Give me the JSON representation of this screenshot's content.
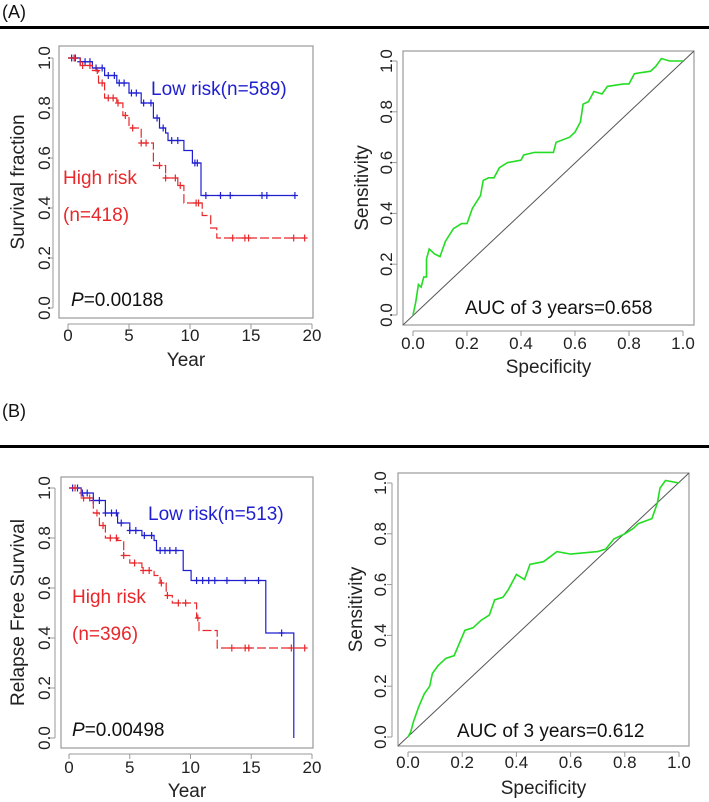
{
  "panels": [
    {
      "label": "(A)"
    },
    {
      "label": "(B)"
    }
  ],
  "colors": {
    "low_risk": "#1f1fd0",
    "high_risk": "#e8282b",
    "roc": "#22dd22",
    "diagonal": "#555555",
    "frame": "#9a9a9a"
  },
  "chart_data": [
    {
      "type": "line",
      "subtype": "kaplan-meier",
      "xlabel": "Year",
      "ylabel": "Survival fraction",
      "xlim": [
        0,
        20
      ],
      "ylim": [
        0,
        1
      ],
      "xticks": [
        "0",
        "5",
        "10",
        "15",
        "20"
      ],
      "yticks": [
        "0.0",
        "0.2",
        "0.4",
        "0.6",
        "0.8",
        "1.0"
      ],
      "annotation": {
        "p_prefix": "P",
        "p_value": "=0.00188"
      },
      "series": [
        {
          "name": "Low risk(n=589)",
          "color": "#1f1fd0",
          "x": [
            0,
            1,
            2,
            3,
            4,
            5,
            6,
            7,
            7.5,
            8,
            8.2,
            9.5,
            10.2,
            10.9,
            18.6
          ],
          "y": [
            1,
            0.985,
            0.96,
            0.93,
            0.9,
            0.86,
            0.82,
            0.76,
            0.72,
            0.7,
            0.67,
            0.63,
            0.58,
            0.45,
            0.45
          ],
          "censored": [
            0.3,
            0.6,
            1,
            1.4,
            1.8,
            2.3,
            2.8,
            3.3,
            3.8,
            4.2,
            4.6,
            5.2,
            5.6,
            6.2,
            6.8,
            7.3,
            7.8,
            8.5,
            9,
            10.4,
            10.6,
            11.3,
            12.5,
            13.3,
            15.9,
            16.3,
            18.6
          ]
        },
        {
          "name_line1": "High risk",
          "name_line2": "(n=418)",
          "color": "#e8282b",
          "x": [
            0,
            1,
            2,
            2.5,
            3,
            4,
            4.5,
            5,
            6,
            7,
            8,
            9,
            9.5,
            10.8,
            11,
            11.7,
            12.2,
            19.4
          ],
          "y": [
            1,
            0.97,
            0.95,
            0.9,
            0.84,
            0.82,
            0.77,
            0.72,
            0.66,
            0.57,
            0.52,
            0.49,
            0.42,
            0.42,
            0.37,
            0.32,
            0.28,
            0.28
          ],
          "censored": [
            0.5,
            1.2,
            1.8,
            2.4,
            2.8,
            3.3,
            3.7,
            4.1,
            4.7,
            5.3,
            6,
            6.4,
            7.5,
            8,
            8.8,
            9.2,
            10.5,
            10.7,
            13.5,
            14.5,
            14.8,
            18.5,
            19.4
          ]
        }
      ]
    },
    {
      "type": "line",
      "subtype": "roc",
      "xlabel": "Specificity",
      "ylabel": "Sensitivity",
      "xlim": [
        0,
        1
      ],
      "ylim": [
        0,
        1
      ],
      "xticks": [
        "0.0",
        "0.2",
        "0.4",
        "0.6",
        "0.8",
        "1.0"
      ],
      "yticks": [
        "0.0",
        "0.2",
        "0.4",
        "0.6",
        "0.8",
        "1.0"
      ],
      "annotation": {
        "auc": "AUC of 3 years=0.658"
      },
      "series": [
        {
          "color": "#22dd22",
          "x": [
            0,
            0.01,
            0.02,
            0.03,
            0.04,
            0.05,
            0.05,
            0.06,
            0.08,
            0.1,
            0.12,
            0.15,
            0.18,
            0.2,
            0.22,
            0.25,
            0.26,
            0.28,
            0.3,
            0.32,
            0.35,
            0.4,
            0.41,
            0.45,
            0.52,
            0.53,
            0.58,
            0.6,
            0.62,
            0.63,
            0.65,
            0.67,
            0.7,
            0.72,
            0.78,
            0.8,
            0.82,
            0.88,
            0.9,
            0.92,
            0.95,
            1.0
          ],
          "y": [
            0,
            0.05,
            0.12,
            0.11,
            0.15,
            0.15,
            0.22,
            0.26,
            0.24,
            0.23,
            0.29,
            0.34,
            0.36,
            0.36,
            0.42,
            0.47,
            0.53,
            0.54,
            0.54,
            0.58,
            0.6,
            0.61,
            0.63,
            0.64,
            0.64,
            0.68,
            0.7,
            0.72,
            0.76,
            0.83,
            0.84,
            0.88,
            0.87,
            0.9,
            0.91,
            0.91,
            0.95,
            0.96,
            0.98,
            1.01,
            1.0,
            1.0
          ]
        }
      ]
    },
    {
      "type": "line",
      "subtype": "kaplan-meier",
      "xlabel": "Year",
      "ylabel": "Relapse Free Survival",
      "xlim": [
        0,
        20
      ],
      "ylim": [
        0,
        1
      ],
      "xticks": [
        "0",
        "5",
        "10",
        "15",
        "20"
      ],
      "yticks": [
        "0.0",
        "0.2",
        "0.4",
        "0.6",
        "0.8",
        "1.0"
      ],
      "annotation": {
        "p_prefix": "P",
        "p_value": "=0.00498"
      },
      "series": [
        {
          "name": "Low risk(n=513)",
          "color": "#1f1fd0",
          "x": [
            0,
            1,
            2,
            3,
            4,
            5,
            6,
            7,
            7.2,
            9.4,
            10.05,
            16.2,
            18.5,
            18.5
          ],
          "y": [
            1,
            0.98,
            0.95,
            0.9,
            0.86,
            0.83,
            0.81,
            0.79,
            0.75,
            0.67,
            0.63,
            0.42,
            0.42,
            0
          ],
          "censored": [
            0.3,
            0.7,
            1.1,
            1.5,
            2,
            2.5,
            3,
            3.5,
            3.9,
            4.3,
            5,
            5.5,
            6.2,
            6.8,
            7.5,
            7.9,
            8.3,
            8.8,
            10.5,
            11,
            11.5,
            12,
            13,
            14.5,
            15.6,
            17.5
          ]
        },
        {
          "name_line1": "High risk",
          "name_line2": "(n=396)",
          "color": "#e8282b",
          "x": [
            0,
            1,
            2,
            2.5,
            3,
            4,
            4.5,
            5,
            6,
            7,
            7.5,
            8,
            8.5,
            10.5,
            10.7,
            12.2,
            19.4
          ],
          "y": [
            1,
            0.96,
            0.9,
            0.85,
            0.8,
            0.79,
            0.73,
            0.7,
            0.67,
            0.65,
            0.62,
            0.57,
            0.54,
            0.48,
            0.43,
            0.36,
            0.36
          ],
          "censored": [
            0.5,
            1.2,
            1.7,
            2.3,
            2.8,
            3.4,
            3.9,
            4.5,
            5.4,
            6.1,
            6.6,
            7.6,
            8.1,
            9,
            9.6,
            10.6,
            13.4,
            14.5,
            14.8,
            18.3,
            19.4
          ]
        }
      ]
    },
    {
      "type": "line",
      "subtype": "roc",
      "xlabel": "Specificity",
      "ylabel": "Sensitivity",
      "xlim": [
        0,
        1
      ],
      "ylim": [
        0,
        1
      ],
      "xticks": [
        "0.0",
        "0.2",
        "0.4",
        "0.6",
        "0.8",
        "1.0"
      ],
      "yticks": [
        "0.0",
        "0.2",
        "0.4",
        "0.6",
        "0.8",
        "1.0"
      ],
      "annotation": {
        "auc": "AUC of 3 years=0.612"
      },
      "series": [
        {
          "color": "#22dd22",
          "x": [
            0,
            0.01,
            0.02,
            0.04,
            0.06,
            0.08,
            0.09,
            0.11,
            0.14,
            0.17,
            0.19,
            0.21,
            0.24,
            0.27,
            0.3,
            0.32,
            0.35,
            0.37,
            0.4,
            0.43,
            0.45,
            0.5,
            0.55,
            0.6,
            0.7,
            0.73,
            0.76,
            0.8,
            0.83,
            0.85,
            0.9,
            0.92,
            0.93,
            0.95,
            1.0
          ],
          "y": [
            0,
            0.02,
            0.06,
            0.12,
            0.17,
            0.2,
            0.25,
            0.28,
            0.31,
            0.32,
            0.37,
            0.42,
            0.43,
            0.46,
            0.48,
            0.54,
            0.55,
            0.58,
            0.64,
            0.62,
            0.68,
            0.69,
            0.73,
            0.72,
            0.73,
            0.74,
            0.78,
            0.8,
            0.82,
            0.84,
            0.86,
            0.92,
            0.98,
            1.01,
            1.0
          ]
        }
      ]
    }
  ]
}
